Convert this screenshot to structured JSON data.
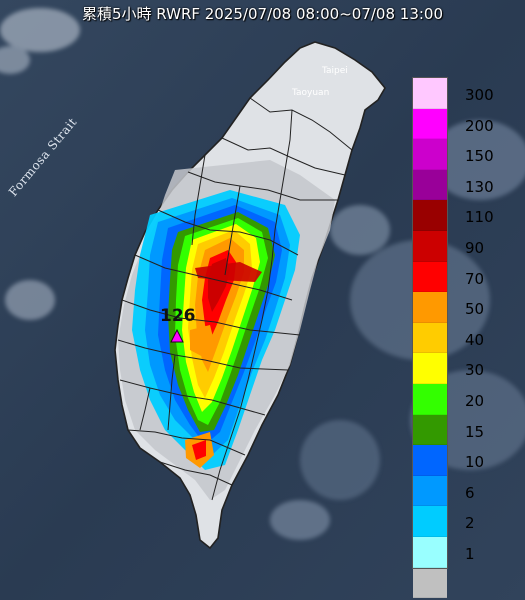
{
  "title": "累積5小時 RWRF 2025/07/08 08:00~07/08 13:00",
  "strait_label": "Formosa Strait",
  "cities": [
    {
      "name": "Taipei"
    },
    {
      "name": "Taoyuan"
    }
  ],
  "peak": {
    "value": "126"
  },
  "legend": {
    "items": [
      {
        "label": "300",
        "color": "#ffc8ff"
      },
      {
        "label": "200",
        "color": "#ff00ff"
      },
      {
        "label": "150",
        "color": "#cc00cc"
      },
      {
        "label": "130",
        "color": "#990099"
      },
      {
        "label": "110",
        "color": "#990000"
      },
      {
        "label": "90",
        "color": "#cc0000"
      },
      {
        "label": "70",
        "color": "#ff0000"
      },
      {
        "label": "50",
        "color": "#ff9900"
      },
      {
        "label": "40",
        "color": "#ffcc00"
      },
      {
        "label": "30",
        "color": "#ffff00"
      },
      {
        "label": "20",
        "color": "#33ff00"
      },
      {
        "label": "15",
        "color": "#339900"
      },
      {
        "label": "10",
        "color": "#0066ff"
      },
      {
        "label": "6",
        "color": "#0099ff"
      },
      {
        "label": "2",
        "color": "#00ccff"
      },
      {
        "label": "1",
        "color": "#99ffff"
      },
      {
        "label": "",
        "color": "#c0c0c0"
      }
    ]
  },
  "colors": {
    "sea": "#2b3d55",
    "land": "#dde0e4",
    "border": "#222222"
  }
}
